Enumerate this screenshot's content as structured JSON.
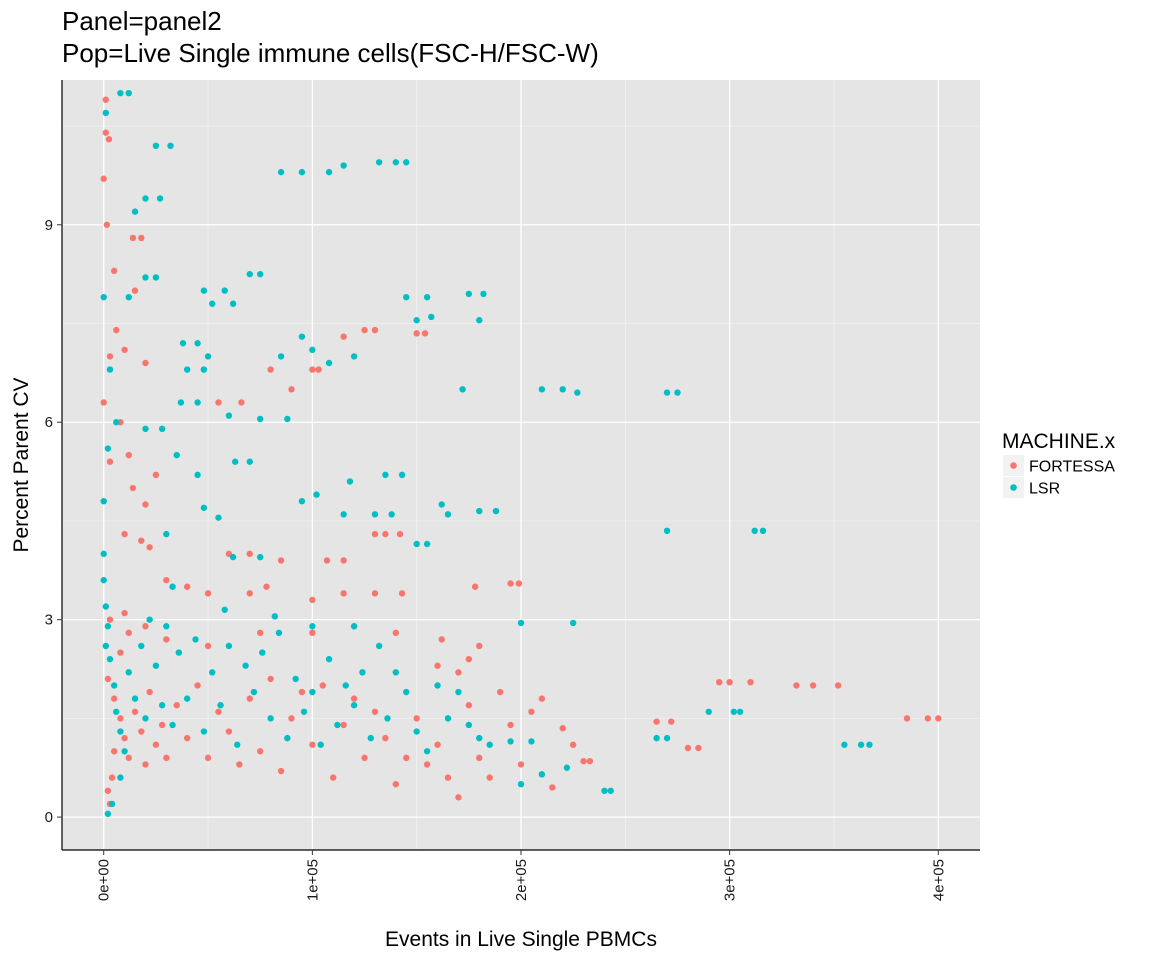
{
  "title_line1": "Panel=panel2",
  "title_line2": "Pop=Live Single immune cells(FSC-H/FSC-W)",
  "chart_data": {
    "type": "scatter",
    "title": "Panel=panel2\nPop=Live Single immune cells(FSC-H/FSC-W)",
    "xlabel": "Events in Live Single PBMCs",
    "ylabel": "Percent Parent CV",
    "xlim": [
      -20000,
      420000
    ],
    "ylim": [
      -0.5,
      11.2
    ],
    "x_ticks": [
      0,
      100000,
      200000,
      300000,
      400000
    ],
    "x_tick_labels": [
      "0e+00",
      "1e+05",
      "2e+05",
      "3e+05",
      "4e+05"
    ],
    "y_ticks": [
      0,
      3,
      6,
      9
    ],
    "y_tick_labels": [
      "0",
      "3",
      "6",
      "9"
    ],
    "grid": true,
    "legend": {
      "title": "MACHINE.x",
      "position": "right"
    },
    "series": [
      {
        "name": "FORTESSA",
        "color": "#F8766D",
        "points": [
          [
            1000,
            10.9
          ],
          [
            1000,
            10.4
          ],
          [
            2500,
            10.3
          ],
          [
            0,
            9.7
          ],
          [
            1500,
            9.0
          ],
          [
            14000,
            8.8
          ],
          [
            18000,
            8.8
          ],
          [
            5000,
            8.3
          ],
          [
            15000,
            8.0
          ],
          [
            6000,
            7.4
          ],
          [
            3000,
            7.0
          ],
          [
            10000,
            7.1
          ],
          [
            20000,
            6.9
          ],
          [
            0,
            6.3
          ],
          [
            8000,
            6.0
          ],
          [
            55000,
            6.3
          ],
          [
            66000,
            6.3
          ],
          [
            80000,
            6.8
          ],
          [
            90000,
            6.5
          ],
          [
            100000,
            6.8
          ],
          [
            103000,
            6.8
          ],
          [
            115000,
            7.3
          ],
          [
            125000,
            7.4
          ],
          [
            130000,
            7.4
          ],
          [
            150000,
            7.35
          ],
          [
            154000,
            7.35
          ],
          [
            3000,
            5.4
          ],
          [
            12000,
            5.5
          ],
          [
            14000,
            5.0
          ],
          [
            25000,
            5.2
          ],
          [
            20000,
            4.75
          ],
          [
            10000,
            4.3
          ],
          [
            18000,
            4.2
          ],
          [
            22000,
            4.1
          ],
          [
            107000,
            3.9
          ],
          [
            115000,
            3.9
          ],
          [
            130000,
            4.3
          ],
          [
            135000,
            4.3
          ],
          [
            142000,
            4.3
          ],
          [
            60000,
            4.0
          ],
          [
            70000,
            4.0
          ],
          [
            85000,
            3.9
          ],
          [
            30000,
            3.6
          ],
          [
            40000,
            3.5
          ],
          [
            50000,
            3.4
          ],
          [
            70000,
            3.4
          ],
          [
            78000,
            3.5
          ],
          [
            100000,
            3.3
          ],
          [
            115000,
            3.4
          ],
          [
            130000,
            3.4
          ],
          [
            143000,
            3.4
          ],
          [
            178000,
            3.5
          ],
          [
            195000,
            3.55
          ],
          [
            199000,
            3.55
          ],
          [
            10000,
            3.1
          ],
          [
            20000,
            2.9
          ],
          [
            30000,
            2.7
          ],
          [
            50000,
            2.6
          ],
          [
            75000,
            2.8
          ],
          [
            100000,
            2.8
          ],
          [
            120000,
            2.9
          ],
          [
            140000,
            2.8
          ],
          [
            162000,
            2.7
          ],
          [
            180000,
            2.6
          ],
          [
            175000,
            2.4
          ],
          [
            170000,
            2.2
          ],
          [
            160000,
            2.3
          ],
          [
            2000,
            2.1
          ],
          [
            5000,
            1.8
          ],
          [
            8000,
            1.5
          ],
          [
            10000,
            1.2
          ],
          [
            12000,
            0.9
          ],
          [
            15000,
            1.6
          ],
          [
            18000,
            1.3
          ],
          [
            20000,
            0.8
          ],
          [
            22000,
            1.9
          ],
          [
            25000,
            1.1
          ],
          [
            28000,
            1.4
          ],
          [
            30000,
            0.9
          ],
          [
            35000,
            1.7
          ],
          [
            40000,
            1.2
          ],
          [
            45000,
            2.0
          ],
          [
            50000,
            0.9
          ],
          [
            55000,
            1.6
          ],
          [
            60000,
            1.3
          ],
          [
            65000,
            0.8
          ],
          [
            70000,
            1.8
          ],
          [
            75000,
            1.0
          ],
          [
            80000,
            2.1
          ],
          [
            85000,
            0.7
          ],
          [
            90000,
            1.5
          ],
          [
            95000,
            1.9
          ],
          [
            100000,
            1.1
          ],
          [
            105000,
            2.0
          ],
          [
            110000,
            0.6
          ],
          [
            115000,
            1.4
          ],
          [
            120000,
            1.8
          ],
          [
            125000,
            0.9
          ],
          [
            130000,
            1.6
          ],
          [
            135000,
            1.2
          ],
          [
            140000,
            0.5
          ],
          [
            145000,
            0.9
          ],
          [
            150000,
            1.5
          ],
          [
            155000,
            0.8
          ],
          [
            160000,
            1.1
          ],
          [
            165000,
            0.6
          ],
          [
            170000,
            0.3
          ],
          [
            175000,
            1.7
          ],
          [
            180000,
            0.9
          ],
          [
            185000,
            0.6
          ],
          [
            190000,
            1.9
          ],
          [
            195000,
            1.4
          ],
          [
            200000,
            0.8
          ],
          [
            205000,
            1.6
          ],
          [
            210000,
            1.8
          ],
          [
            215000,
            0.45
          ],
          [
            220000,
            1.35
          ],
          [
            225000,
            1.1
          ],
          [
            230000,
            0.85
          ],
          [
            233000,
            0.85
          ],
          [
            265000,
            1.45
          ],
          [
            272000,
            1.45
          ],
          [
            280000,
            1.05
          ],
          [
            285000,
            1.05
          ],
          [
            295000,
            2.05
          ],
          [
            300000,
            2.05
          ],
          [
            310000,
            2.05
          ],
          [
            332000,
            2.0
          ],
          [
            340000,
            2.0
          ],
          [
            352000,
            2.0
          ],
          [
            385000,
            1.5
          ],
          [
            395000,
            1.5
          ],
          [
            400000,
            1.5
          ],
          [
            2000,
            0.4
          ],
          [
            3000,
            0.2
          ],
          [
            4000,
            0.6
          ],
          [
            5000,
            1.0
          ],
          [
            8000,
            2.5
          ],
          [
            12000,
            2.8
          ],
          [
            3000,
            3.0
          ]
        ]
      },
      {
        "name": "LSR",
        "color": "#00BFC4",
        "points": [
          [
            8000,
            11.0
          ],
          [
            12000,
            11.0
          ],
          [
            1000,
            10.7
          ],
          [
            25000,
            10.2
          ],
          [
            32000,
            10.2
          ],
          [
            20000,
            9.4
          ],
          [
            27000,
            9.4
          ],
          [
            15000,
            9.2
          ],
          [
            0,
            7.9
          ],
          [
            12000,
            7.9
          ],
          [
            20000,
            8.2
          ],
          [
            25000,
            8.2
          ],
          [
            48000,
            8.0
          ],
          [
            58000,
            8.0
          ],
          [
            70000,
            8.25
          ],
          [
            75000,
            8.25
          ],
          [
            85000,
            9.8
          ],
          [
            95000,
            9.8
          ],
          [
            108000,
            9.8
          ],
          [
            115000,
            9.9
          ],
          [
            132000,
            9.95
          ],
          [
            140000,
            9.95
          ],
          [
            145000,
            9.95
          ],
          [
            52000,
            7.8
          ],
          [
            62000,
            7.8
          ],
          [
            38000,
            7.2
          ],
          [
            45000,
            7.2
          ],
          [
            50000,
            7.0
          ],
          [
            85000,
            7.0
          ],
          [
            95000,
            7.3
          ],
          [
            100000,
            7.1
          ],
          [
            108000,
            6.9
          ],
          [
            120000,
            7.0
          ],
          [
            145000,
            7.9
          ],
          [
            155000,
            7.9
          ],
          [
            175000,
            7.95
          ],
          [
            182000,
            7.95
          ],
          [
            180000,
            7.55
          ],
          [
            150000,
            7.55
          ],
          [
            157000,
            7.6
          ],
          [
            172000,
            6.5
          ],
          [
            210000,
            6.5
          ],
          [
            220000,
            6.5
          ],
          [
            227000,
            6.45
          ],
          [
            270000,
            6.45
          ],
          [
            275000,
            6.45
          ],
          [
            40000,
            6.8
          ],
          [
            48000,
            6.8
          ],
          [
            60000,
            6.1
          ],
          [
            75000,
            6.05
          ],
          [
            88000,
            6.05
          ],
          [
            37000,
            6.3
          ],
          [
            45000,
            6.3
          ],
          [
            63000,
            5.4
          ],
          [
            70000,
            5.4
          ],
          [
            20000,
            5.9
          ],
          [
            28000,
            5.9
          ],
          [
            35000,
            5.5
          ],
          [
            45000,
            5.2
          ],
          [
            95000,
            4.8
          ],
          [
            102000,
            4.9
          ],
          [
            118000,
            5.1
          ],
          [
            135000,
            5.2
          ],
          [
            143000,
            5.2
          ],
          [
            115000,
            4.6
          ],
          [
            130000,
            4.6
          ],
          [
            138000,
            4.6
          ],
          [
            162000,
            4.75
          ],
          [
            165000,
            4.6
          ],
          [
            180000,
            4.65
          ],
          [
            188000,
            4.65
          ],
          [
            150000,
            4.15
          ],
          [
            155000,
            4.15
          ],
          [
            270000,
            4.35
          ],
          [
            312000,
            4.35
          ],
          [
            316000,
            4.35
          ],
          [
            55000,
            4.55
          ],
          [
            48000,
            4.7
          ],
          [
            30000,
            4.3
          ],
          [
            62000,
            3.95
          ],
          [
            75000,
            3.95
          ],
          [
            33000,
            3.5
          ],
          [
            58000,
            3.15
          ],
          [
            82000,
            3.05
          ],
          [
            100000,
            2.9
          ],
          [
            120000,
            2.9
          ],
          [
            200000,
            2.95
          ],
          [
            225000,
            2.95
          ],
          [
            0,
            4.8
          ],
          [
            0,
            4.0
          ],
          [
            0,
            3.6
          ],
          [
            1000,
            3.2
          ],
          [
            2000,
            2.9
          ],
          [
            3000,
            2.4
          ],
          [
            5000,
            2.0
          ],
          [
            6000,
            1.6
          ],
          [
            8000,
            1.3
          ],
          [
            10000,
            1.0
          ],
          [
            12000,
            2.2
          ],
          [
            15000,
            1.8
          ],
          [
            18000,
            2.6
          ],
          [
            20000,
            1.5
          ],
          [
            22000,
            3.0
          ],
          [
            25000,
            2.3
          ],
          [
            28000,
            1.7
          ],
          [
            30000,
            2.9
          ],
          [
            33000,
            1.4
          ],
          [
            36000,
            2.5
          ],
          [
            40000,
            1.8
          ],
          [
            44000,
            2.7
          ],
          [
            48000,
            1.3
          ],
          [
            52000,
            2.2
          ],
          [
            56000,
            1.7
          ],
          [
            60000,
            2.6
          ],
          [
            64000,
            1.1
          ],
          [
            68000,
            2.3
          ],
          [
            72000,
            1.9
          ],
          [
            76000,
            2.5
          ],
          [
            80000,
            1.5
          ],
          [
            84000,
            2.8
          ],
          [
            88000,
            1.2
          ],
          [
            92000,
            2.1
          ],
          [
            96000,
            1.6
          ],
          [
            100000,
            1.9
          ],
          [
            104000,
            1.1
          ],
          [
            108000,
            2.4
          ],
          [
            112000,
            1.4
          ],
          [
            116000,
            2.0
          ],
          [
            120000,
            1.7
          ],
          [
            124000,
            2.2
          ],
          [
            128000,
            1.2
          ],
          [
            132000,
            2.6
          ],
          [
            136000,
            1.5
          ],
          [
            140000,
            2.2
          ],
          [
            145000,
            1.9
          ],
          [
            150000,
            1.3
          ],
          [
            155000,
            1.0
          ],
          [
            160000,
            2.0
          ],
          [
            165000,
            1.5
          ],
          [
            170000,
            1.9
          ],
          [
            175000,
            1.4
          ],
          [
            180000,
            1.2
          ],
          [
            185000,
            1.1
          ],
          [
            195000,
            1.15
          ],
          [
            205000,
            1.15
          ],
          [
            210000,
            0.65
          ],
          [
            200000,
            0.5
          ],
          [
            222000,
            0.75
          ],
          [
            240000,
            0.4
          ],
          [
            243000,
            0.4
          ],
          [
            265000,
            1.2
          ],
          [
            270000,
            1.2
          ],
          [
            290000,
            1.6
          ],
          [
            302000,
            1.6
          ],
          [
            305000,
            1.6
          ],
          [
            355000,
            1.1
          ],
          [
            363000,
            1.1
          ],
          [
            367000,
            1.1
          ],
          [
            8000,
            0.6
          ],
          [
            4000,
            0.2
          ],
          [
            2000,
            0.05
          ],
          [
            1000,
            2.6
          ],
          [
            3000,
            6.8
          ],
          [
            2000,
            5.6
          ],
          [
            6000,
            6.0
          ]
        ]
      }
    ]
  }
}
